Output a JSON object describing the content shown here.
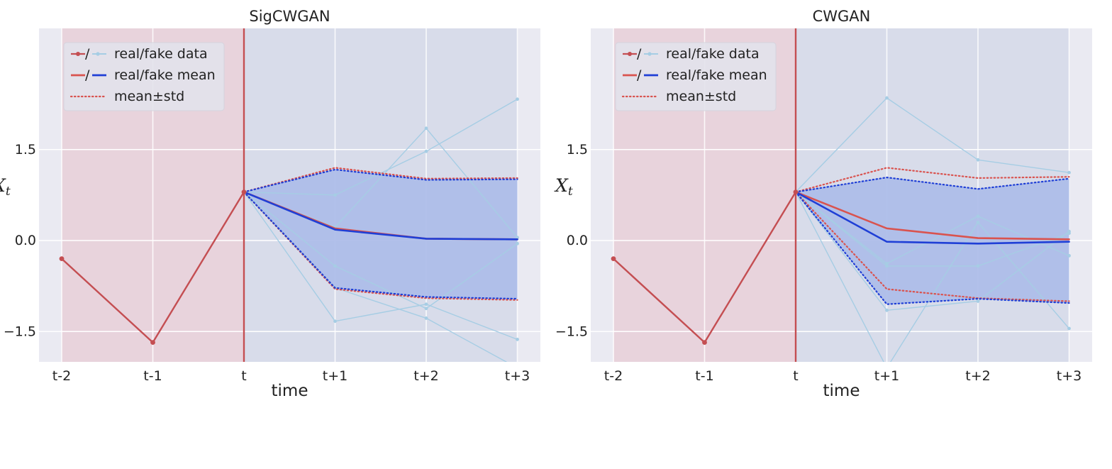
{
  "chart_data": [
    {
      "type": "line",
      "title": "SigCWGAN",
      "xlabel": "time",
      "ylabel": "X",
      "ylabel_sub": "t",
      "x_ticks": [
        "t-2",
        "t-1",
        "t",
        "t+1",
        "t+2",
        "t+3"
      ],
      "y_ticks": [
        {
          "value": -1.5,
          "label": "−1.5"
        },
        {
          "value": 0.0,
          "label": "0.0"
        },
        {
          "value": 1.5,
          "label": "1.5"
        }
      ],
      "ylim": [
        -2.0,
        3.5
      ],
      "grid": true,
      "legend_position": "top-left",
      "legend": [
        "real/fake data",
        "real/fake mean",
        "mean±std"
      ],
      "real_path": [
        -0.3,
        -1.68,
        0.8
      ],
      "real_mean": [
        0.8,
        0.2,
        0.03,
        0.02
      ],
      "real_upper": [
        0.8,
        1.2,
        1.02,
        1.03
      ],
      "real_lower": [
        0.8,
        -0.8,
        -0.95,
        -0.98
      ],
      "fake_mean": [
        0.8,
        0.18,
        0.03,
        0.02
      ],
      "fake_upper": [
        0.8,
        1.17,
        1.0,
        1.01
      ],
      "fake_lower": [
        0.8,
        -0.78,
        -0.93,
        -0.96
      ],
      "fake_paths": [
        [
          0.8,
          0.75,
          1.47,
          2.33
        ],
        [
          0.8,
          0.22,
          1.85,
          0.05
        ],
        [
          0.8,
          -0.42,
          -1.12,
          -0.05
        ],
        [
          0.8,
          -1.33,
          -1.05,
          -1.63
        ],
        [
          0.8,
          -0.78,
          -1.28,
          -2.1
        ]
      ]
    },
    {
      "type": "line",
      "title": "CWGAN",
      "xlabel": "time",
      "ylabel": "X",
      "ylabel_sub": "t",
      "x_ticks": [
        "t-2",
        "t-1",
        "t",
        "t+1",
        "t+2",
        "t+3"
      ],
      "y_ticks": [
        {
          "value": -1.5,
          "label": "−1.5"
        },
        {
          "value": 0.0,
          "label": "0.0"
        },
        {
          "value": 1.5,
          "label": "1.5"
        }
      ],
      "ylim": [
        -2.0,
        3.5
      ],
      "grid": true,
      "legend_position": "top-left",
      "legend": [
        "real/fake data",
        "real/fake mean",
        "mean±std"
      ],
      "real_path": [
        -0.3,
        -1.68,
        0.8
      ],
      "real_mean": [
        0.8,
        0.2,
        0.04,
        0.02
      ],
      "real_upper": [
        0.8,
        1.2,
        1.03,
        1.05
      ],
      "real_lower": [
        0.8,
        -0.8,
        -0.95,
        -1.0
      ],
      "fake_mean": [
        0.8,
        -0.02,
        -0.05,
        -0.02
      ],
      "fake_upper": [
        0.8,
        1.04,
        0.85,
        1.02
      ],
      "fake_lower": [
        0.8,
        -1.05,
        -0.96,
        -1.03
      ],
      "fake_paths": [
        [
          0.8,
          2.35,
          1.33,
          1.12
        ],
        [
          0.8,
          -0.38,
          0.4,
          -0.25
        ],
        [
          0.8,
          -0.42,
          -0.42,
          0.12
        ],
        [
          0.8,
          -1.15,
          -1.0,
          0.15
        ],
        [
          0.8,
          -2.1,
          0.3,
          -1.45
        ]
      ]
    }
  ],
  "colors": {
    "real": "#c44e52",
    "real_mean": "#d9534f",
    "fake_mean": "#1f3fd6",
    "fake_paths": "#a6cde4",
    "fake_band": "#aebde9",
    "plot_bg": "#eaeaf2",
    "history_shade": "#e8d3dc",
    "future_shade": "#d8dcea",
    "grid": "#ffffff"
  }
}
